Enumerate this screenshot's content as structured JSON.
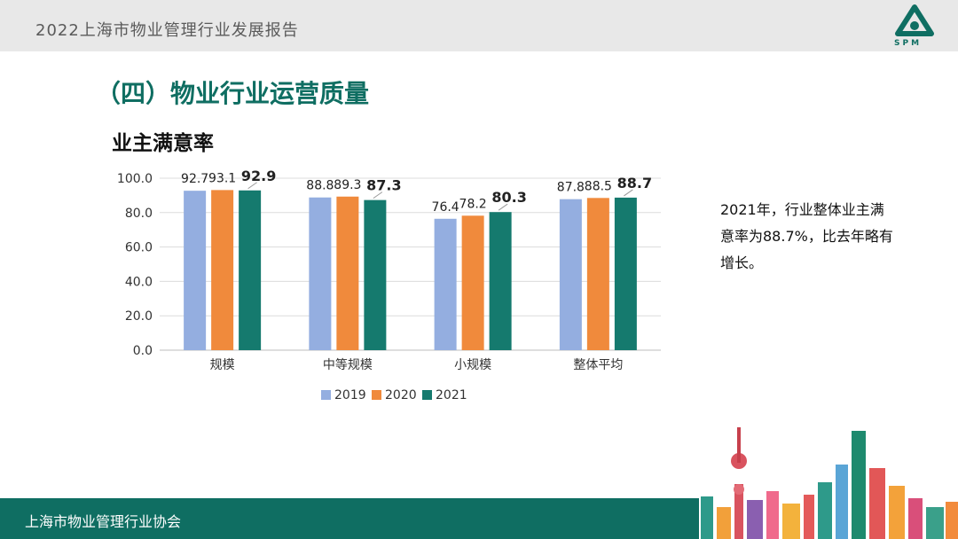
{
  "header": {
    "report_title": "2022上海市物业管理行业发展报告",
    "logo_text": "SPM"
  },
  "section_title": "（四）物业行业运营质量",
  "chart_data": {
    "type": "bar",
    "title": "业主满意率",
    "categories": [
      "规模",
      "中等规模",
      "小规模",
      "整体平均"
    ],
    "series": [
      {
        "name": "2019",
        "values": [
          92.7,
          88.8,
          76.4,
          87.8
        ],
        "color": "#94aee0"
      },
      {
        "name": "2020",
        "values": [
          93.1,
          89.3,
          78.2,
          88.5
        ],
        "color": "#f08a3c"
      },
      {
        "name": "2021",
        "values": [
          92.9,
          87.3,
          80.3,
          88.7
        ],
        "color": "#157a6e"
      }
    ],
    "ylim": [
      0,
      100
    ],
    "yticks": [
      "0.0",
      "20.0",
      "40.0",
      "60.0",
      "80.0",
      "100.0"
    ],
    "grid": true,
    "legend_position": "bottom"
  },
  "side_note": "2021年，行业整体业主满意率为88.7%，比去年略有增长。",
  "footer": {
    "org": "上海市物业管理行业协会"
  },
  "colors": {
    "brand": "#0f6e62",
    "header_bg": "#e8e8e8"
  }
}
